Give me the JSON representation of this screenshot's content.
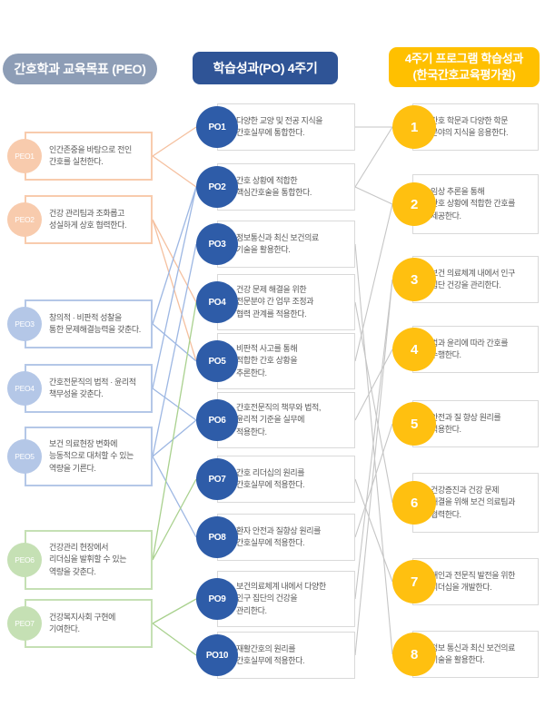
{
  "headers": {
    "peo": "간호학과 교육목표 (PEO)",
    "po": "학습성과(PO) 4주기",
    "program": "4주기 프로그램 학습성과\n(한국간호교육평가원)"
  },
  "colors": {
    "peo_header_bg": "#8D9DB6",
    "po_header_bg": "#2F5496",
    "program_header_bg": "#FFC000",
    "peach_fill": "#F8CBAD",
    "blue_fill": "#B4C7E7",
    "green_fill": "#C5E0B4",
    "navy_fill": "#2E5CA8",
    "gold_fill": "#FFC010",
    "peach_line": "#F5C09F",
    "blue_line": "#9DB7E3",
    "green_line": "#A9D18E",
    "gray_line": "#C6C6C6",
    "gray_border": "#D9D9D9",
    "text": "#595959"
  },
  "peo_items": [
    {
      "id": "PEO1",
      "label": "PEO1",
      "group": "peach",
      "text": "인간존중을 바탕으로 전인\n간호를 실천한다."
    },
    {
      "id": "PEO2",
      "label": "PEO2",
      "group": "peach",
      "text": "건강 관리팀과 조화롭고\n성실하게 상호 협력한다."
    },
    {
      "id": "PEO3",
      "label": "PEO3",
      "group": "blue",
      "text": "창의적 · 비판적 성찰을\n통한 문제해결능력을 갖춘다."
    },
    {
      "id": "PEO4",
      "label": "PEO4",
      "group": "blue",
      "text": "간호전문직의 법적 · 윤리적\n책무성을 갖춘다."
    },
    {
      "id": "PEO5",
      "label": "PEO5",
      "group": "blue",
      "text": "보건 의료현장 변화에\n능동적으로 대처할 수 있는\n역량을 기른다."
    },
    {
      "id": "PEO6",
      "label": "PEO6",
      "group": "green",
      "text": "건강관리 현장에서\n리더십을 발휘할 수 있는\n역량을 갖춘다."
    },
    {
      "id": "PEO7",
      "label": "PEO7",
      "group": "green",
      "text": "건강복지사회 구현에\n기여한다."
    }
  ],
  "po_items": [
    {
      "id": "PO1",
      "label": "PO1",
      "text": "다양한 교양 및 전공 지식을\n간호실무에 통합한다."
    },
    {
      "id": "PO2",
      "label": "PO2",
      "text": "간호 상황에 적합한\n핵심간호술을 통합한다."
    },
    {
      "id": "PO3",
      "label": "PO3",
      "text": "정보통신과 최신 보건의료\n기술을 활용한다."
    },
    {
      "id": "PO4",
      "label": "PO4",
      "text": "건강 문제 해결을 위한\n전문분야 간 업무 조정과\n협력 관계를 적용한다."
    },
    {
      "id": "PO5",
      "label": "PO5",
      "text": "비판적 사고를 통해\n적합한 간호 상황을\n추론한다."
    },
    {
      "id": "PO6",
      "label": "PO6",
      "text": "간호전문직의 책무와 법적,\n윤리적 기준을 실무에\n적용한다."
    },
    {
      "id": "PO7",
      "label": "PO7",
      "text": "간호 리더십의 원리를\n간호실무에 적용한다."
    },
    {
      "id": "PO8",
      "label": "PO8",
      "text": "환자 안전과 질향상 원리를\n간호실무에 적용한다."
    },
    {
      "id": "PO9",
      "label": "PO9",
      "text": "보건의료체계 내에서 다양한\n인구 집단의 건강을\n관리한다."
    },
    {
      "id": "PO10",
      "label": "PO10",
      "text": "재활간호의 원리를\n간호실무에 적용한다."
    }
  ],
  "program_items": [
    {
      "id": "1",
      "label": "1",
      "text": "간호 학문과 다양한 학문\n분야의 지식을 응용한다."
    },
    {
      "id": "2",
      "label": "2",
      "text": "임상 추론을 통해\n간호 상황에 적합한 간호를\n제공한다."
    },
    {
      "id": "3",
      "label": "3",
      "text": "보건 의료체계 내에서 인구\n집단 건강을 관리한다."
    },
    {
      "id": "4",
      "label": "4",
      "text": "법과 윤리에 따라 간호를\n수행한다."
    },
    {
      "id": "5",
      "label": "5",
      "text": "안전과 질 향상 원리를\n적용한다."
    },
    {
      "id": "6",
      "label": "6",
      "text": "건강증진과 건강 문제\n해결을 위해 보건 의료팀과\n협력한다."
    },
    {
      "id": "7",
      "label": "7",
      "text": "개인과 전문직 발전을 위한\n리더십을 개발한다."
    },
    {
      "id": "8",
      "label": "8",
      "text": "정보 통신과 최신 보건의료\n기술을 활용한다."
    }
  ],
  "connections": {
    "peo_to_po": [
      [
        "PEO1",
        "PO1"
      ],
      [
        "PEO1",
        "PO2"
      ],
      [
        "PEO2",
        "PO4"
      ],
      [
        "PEO2",
        "PO5"
      ],
      [
        "PEO3",
        "PO2"
      ],
      [
        "PEO3",
        "PO5"
      ],
      [
        "PEO4",
        "PO2"
      ],
      [
        "PEO4",
        "PO6"
      ],
      [
        "PEO5",
        "PO3"
      ],
      [
        "PEO5",
        "PO6"
      ],
      [
        "PEO5",
        "PO8"
      ],
      [
        "PEO6",
        "PO4"
      ],
      [
        "PEO6",
        "PO7"
      ],
      [
        "PEO7",
        "PO9"
      ],
      [
        "PEO7",
        "PO10"
      ]
    ],
    "po_to_program": [
      [
        "PO1",
        "1"
      ],
      [
        "PO2",
        "1"
      ],
      [
        "PO2",
        "2"
      ],
      [
        "PO3",
        "8"
      ],
      [
        "PO4",
        "6"
      ],
      [
        "PO5",
        "2"
      ],
      [
        "PO6",
        "4"
      ],
      [
        "PO7",
        "7"
      ],
      [
        "PO8",
        "5"
      ],
      [
        "PO9",
        "3"
      ],
      [
        "PO10",
        "3"
      ]
    ]
  }
}
